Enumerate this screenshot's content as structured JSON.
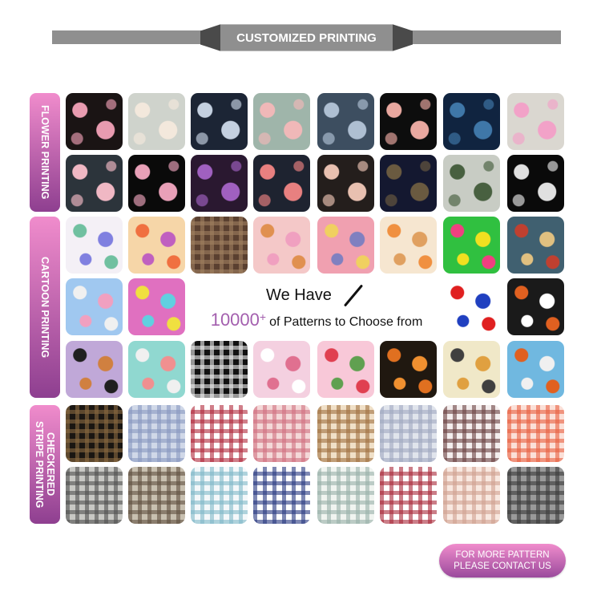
{
  "header": {
    "title": "CUSTOMIZED PRINTING",
    "bar_color": "#8f8f8f",
    "accent_dark": "#4a4a4a"
  },
  "sections": [
    {
      "label": "FLOWER PRINTING",
      "rows": 2
    },
    {
      "label": "CARTOON PRINTING",
      "rows": 3
    },
    {
      "label": "CHECKERED\nSTRIPE PRINTING",
      "rows": 2
    }
  ],
  "center_text": {
    "line1": "We Have",
    "count": "10000",
    "plus": "+",
    "line2": "of Patterns to Choose from",
    "count_color": "#a35fae"
  },
  "cta_button": {
    "line1": "FOR MORE PATTERN",
    "line2": "PLEASE CONTACT US"
  },
  "brand_gradient": [
    "#f08ccc",
    "#8e3f90"
  ],
  "tiles": [
    [
      [
        "floral",
        "#1a1414",
        "#e89bb0"
      ],
      [
        "floral",
        "#cfd3cc",
        "#f3e8dc"
      ],
      [
        "floral",
        "#1c2535",
        "#c4d0e0"
      ],
      [
        "floral",
        "#9fb5aa",
        "#f0b8b8"
      ],
      [
        "floral",
        "#3d4e60",
        "#aebfd2"
      ],
      [
        "floral",
        "#0d0d0d",
        "#e9a8a0"
      ],
      [
        "floral",
        "#102440",
        "#3f77a8"
      ],
      [
        "floral",
        "#dad7d0",
        "#f2a2c8"
      ]
    ],
    [
      [
        "floral",
        "#2c343b",
        "#f0b8c4"
      ],
      [
        "floral",
        "#0a0a0a",
        "#e8a0b8"
      ],
      [
        "floral",
        "#2a1830",
        "#a060c0"
      ],
      [
        "floral",
        "#1e2330",
        "#e88080"
      ],
      [
        "floral",
        "#241e1c",
        "#e8c0b0"
      ],
      [
        "floral",
        "#141830",
        "#6a5a40"
      ],
      [
        "floral",
        "#c8ccc4",
        "#486040"
      ],
      [
        "floral",
        "#0a0a0a",
        "#e0e0e0"
      ]
    ],
    [
      [
        "cartoon",
        "#f4f0f6",
        "#70c0a0",
        "#8080e0"
      ],
      [
        "cartoon",
        "#f6d6a8",
        "#f07040",
        "#c060c0"
      ],
      [
        "plaid",
        "#5a4030",
        "#a08060"
      ],
      [
        "cartoon",
        "#f4c8c8",
        "#e09050",
        "#f0a0c0"
      ],
      [
        "cartoon",
        "#f0a0b0",
        "#f0d060",
        "#8080c0"
      ],
      [
        "cartoon",
        "#f6e6d0",
        "#f09040",
        "#e0a060"
      ],
      [
        "cartoon",
        "#30c040",
        "#f04080",
        "#f0e020"
      ],
      [
        "cartoon",
        "#406070",
        "#c04030",
        "#e0c080"
      ]
    ],
    [
      [
        "cartoon",
        "#a0c8f0",
        "#f0f0f0",
        "#f0a0c0"
      ],
      [
        "cartoon",
        "#e070c0",
        "#f0e040",
        "#60d0e0"
      ],
      null,
      null,
      null,
      null,
      [
        "cartoon",
        "#ffffff",
        "#e02020",
        "#2040c0"
      ],
      [
        "cartoon",
        "#1a1a1a",
        "#e06020",
        "#ffffff"
      ]
    ],
    [
      [
        "cartoon",
        "#c0a8d8",
        "#202020",
        "#d08040"
      ],
      [
        "cartoon",
        "#90d8d0",
        "#f0f0f0",
        "#f09090"
      ],
      [
        "plaid",
        "#111111",
        "#f0f0f0"
      ],
      [
        "cartoon",
        "#f4d0e0",
        "#ffffff",
        "#e07090"
      ],
      [
        "cartoon",
        "#f8c8d8",
        "#e04050",
        "#60a050"
      ],
      [
        "cartoon",
        "#201810",
        "#e07020",
        "#f09030"
      ],
      [
        "cartoon",
        "#f0e8c8",
        "#404040",
        "#e0a040"
      ],
      [
        "cartoon",
        "#70b8e0",
        "#e06020",
        "#f0f0f0"
      ]
    ],
    [
      [
        "plaid",
        "#1a1612",
        "#8a6a40"
      ],
      [
        "plaid",
        "#d0d8e8",
        "#8898c0"
      ],
      [
        "plaid",
        "#ffffff",
        "#b0283a"
      ],
      [
        "plaid",
        "#f4d8d8",
        "#d07080"
      ],
      [
        "plaid",
        "#f0e0c8",
        "#a07040"
      ],
      [
        "plaid",
        "#e0e4ec",
        "#a0a8c0"
      ],
      [
        "plaid",
        "#f4eeee",
        "#6a4040"
      ],
      [
        "plaid",
        "#fbe0d8",
        "#e86040"
      ]
    ],
    [
      [
        "plaid",
        "#c8c8c4",
        "#505050"
      ],
      [
        "plaid",
        "#c8c0b0",
        "#605040"
      ],
      [
        "plaid",
        "#f4f8fa",
        "#80b8c8"
      ],
      [
        "plaid",
        "#ffffff",
        "#283880"
      ],
      [
        "plaid",
        "#f0f4f0",
        "#98b0a8"
      ],
      [
        "plaid",
        "#ffffff",
        "#a82838"
      ],
      [
        "plaid",
        "#f8e8e0",
        "#d0a090"
      ],
      [
        "plaid",
        "#9a9a9a",
        "#3a3a3a"
      ]
    ]
  ]
}
